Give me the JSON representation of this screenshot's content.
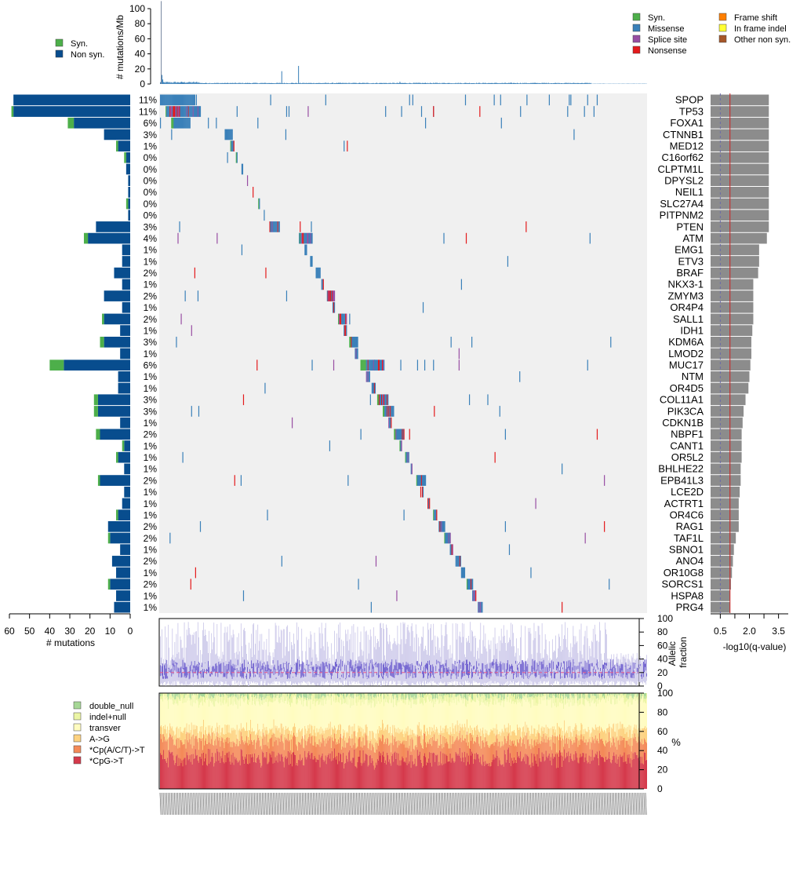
{
  "chart_data": {
    "type": "mutation-landscape",
    "colors": {
      "syn": "#4daf4a",
      "nonsyn": "#084d8e",
      "missense": "#3a80b9",
      "splice_site": "#984ea3",
      "nonsense": "#e41a1c",
      "frame_shift": "#ff7f00",
      "in_frame_indel": "#ffff33",
      "other_non_syn": "#a65628",
      "matrix_bg": "#f0f0f0",
      "q_bar": "#8c8c8c",
      "sig_line": "#cc2222",
      "af_line": "#6a5acd",
      "af_median": "#e85a8a"
    },
    "mutation_rate_panel": {
      "ylabel": "# mutations/Mb",
      "yticks": [
        "0",
        "20",
        "40",
        "60",
        "80",
        "100"
      ],
      "ylim": [
        0,
        110
      ],
      "legend": [
        {
          "label": "Syn.",
          "color": "#4daf4a"
        },
        {
          "label": "Non syn.",
          "color": "#084d8e"
        }
      ],
      "peaks": [
        {
          "sample": 1,
          "value": 110
        },
        {
          "sample": 2,
          "value": 12
        },
        {
          "sample": 3,
          "value": 6
        },
        {
          "sample": 152,
          "value": 17
        },
        {
          "sample": 173,
          "value": 24
        },
        {
          "sample": 300,
          "value": 3
        }
      ]
    },
    "mutation_type_legend": [
      {
        "label": "Syn.",
        "color": "#4daf4a"
      },
      {
        "label": "Missense",
        "color": "#3a80b9"
      },
      {
        "label": "Splice site",
        "color": "#984ea3"
      },
      {
        "label": "Nonsense",
        "color": "#e41a1c"
      },
      {
        "label": "Frame shift",
        "color": "#ff7f00"
      },
      {
        "label": "In frame indel",
        "color": "#ffff33"
      },
      {
        "label": "Other non syn.",
        "color": "#a65628"
      }
    ],
    "gene_count_axis": {
      "xlabel": "# mutations",
      "ticks": [
        "60",
        "50",
        "40",
        "30",
        "20",
        "10",
        "0"
      ],
      "xlim": [
        0,
        60
      ]
    },
    "qvalue_axis": {
      "xlabel": "-log10(q-value)",
      "ticks": [
        "0.5",
        "2.0",
        "3.5"
      ],
      "xlim": [
        0,
        4
      ]
    },
    "genes": [
      {
        "name": "SPOP",
        "pct": "11%",
        "nonsyn": 58,
        "syn": 0,
        "q": 3.0
      },
      {
        "name": "TP53",
        "pct": "11%",
        "nonsyn": 58,
        "syn": 1,
        "q": 3.0
      },
      {
        "name": "FOXA1",
        "pct": "6%",
        "nonsyn": 28,
        "syn": 3,
        "q": 3.0
      },
      {
        "name": "CTNNB1",
        "pct": "3%",
        "nonsyn": 13,
        "syn": 0,
        "q": 3.0
      },
      {
        "name": "MED12",
        "pct": "1%",
        "nonsyn": 6,
        "syn": 1,
        "q": 3.0
      },
      {
        "name": "C16orf62",
        "pct": "0%",
        "nonsyn": 2,
        "syn": 1,
        "q": 3.0
      },
      {
        "name": "CLPTM1L",
        "pct": "0%",
        "nonsyn": 2,
        "syn": 0,
        "q": 3.0
      },
      {
        "name": "DPYSL2",
        "pct": "0%",
        "nonsyn": 1,
        "syn": 0,
        "q": 3.0
      },
      {
        "name": "NEIL1",
        "pct": "0%",
        "nonsyn": 1,
        "syn": 0,
        "q": 3.0
      },
      {
        "name": "SLC27A4",
        "pct": "0%",
        "nonsyn": 1,
        "syn": 1,
        "q": 3.0
      },
      {
        "name": "PITPNM2",
        "pct": "0%",
        "nonsyn": 1,
        "syn": 0,
        "q": 3.0
      },
      {
        "name": "PTEN",
        "pct": "3%",
        "nonsyn": 17,
        "syn": 0,
        "q": 3.0
      },
      {
        "name": "ATM",
        "pct": "4%",
        "nonsyn": 21,
        "syn": 2,
        "q": 2.9
      },
      {
        "name": "EMG1",
        "pct": "1%",
        "nonsyn": 4,
        "syn": 0,
        "q": 2.5
      },
      {
        "name": "ETV3",
        "pct": "1%",
        "nonsyn": 4,
        "syn": 0,
        "q": 2.5
      },
      {
        "name": "BRAF",
        "pct": "2%",
        "nonsyn": 8,
        "syn": 0,
        "q": 2.45
      },
      {
        "name": "NKX3-1",
        "pct": "1%",
        "nonsyn": 4,
        "syn": 0,
        "q": 2.2
      },
      {
        "name": "ZMYM3",
        "pct": "2%",
        "nonsyn": 13,
        "syn": 0,
        "q": 2.2
      },
      {
        "name": "OR4P4",
        "pct": "1%",
        "nonsyn": 4,
        "syn": 0,
        "q": 2.2
      },
      {
        "name": "SALL1",
        "pct": "2%",
        "nonsyn": 13,
        "syn": 1,
        "q": 2.2
      },
      {
        "name": "IDH1",
        "pct": "1%",
        "nonsyn": 5,
        "syn": 0,
        "q": 2.15
      },
      {
        "name": "KDM6A",
        "pct": "3%",
        "nonsyn": 13,
        "syn": 2,
        "q": 2.1
      },
      {
        "name": "LMOD2",
        "pct": "1%",
        "nonsyn": 5,
        "syn": 0,
        "q": 2.1
      },
      {
        "name": "MUC17",
        "pct": "6%",
        "nonsyn": 33,
        "syn": 7,
        "q": 2.05
      },
      {
        "name": "NTM",
        "pct": "1%",
        "nonsyn": 6,
        "syn": 0,
        "q": 2.0
      },
      {
        "name": "OR4D5",
        "pct": "1%",
        "nonsyn": 6,
        "syn": 0,
        "q": 1.95
      },
      {
        "name": "COL11A1",
        "pct": "3%",
        "nonsyn": 16,
        "syn": 2,
        "q": 1.8
      },
      {
        "name": "PIK3CA",
        "pct": "3%",
        "nonsyn": 16,
        "syn": 2,
        "q": 1.7
      },
      {
        "name": "CDKN1B",
        "pct": "1%",
        "nonsyn": 5,
        "syn": 0,
        "q": 1.65
      },
      {
        "name": "NBPF1",
        "pct": "2%",
        "nonsyn": 15,
        "syn": 2,
        "q": 1.6
      },
      {
        "name": "CANT1",
        "pct": "1%",
        "nonsyn": 3,
        "syn": 1,
        "q": 1.6
      },
      {
        "name": "OR5L2",
        "pct": "1%",
        "nonsyn": 6,
        "syn": 1,
        "q": 1.6
      },
      {
        "name": "BHLHE22",
        "pct": "1%",
        "nonsyn": 3,
        "syn": 0,
        "q": 1.55
      },
      {
        "name": "EPB41L3",
        "pct": "2%",
        "nonsyn": 15,
        "syn": 1,
        "q": 1.55
      },
      {
        "name": "LCE2D",
        "pct": "1%",
        "nonsyn": 3,
        "syn": 0,
        "q": 1.5
      },
      {
        "name": "ACTRT1",
        "pct": "1%",
        "nonsyn": 4,
        "syn": 0,
        "q": 1.45
      },
      {
        "name": "OR4C6",
        "pct": "1%",
        "nonsyn": 6,
        "syn": 1,
        "q": 1.45
      },
      {
        "name": "RAG1",
        "pct": "2%",
        "nonsyn": 11,
        "syn": 0,
        "q": 1.45
      },
      {
        "name": "TAF1L",
        "pct": "2%",
        "nonsyn": 10,
        "syn": 1,
        "q": 1.3
      },
      {
        "name": "SBNO1",
        "pct": "1%",
        "nonsyn": 5,
        "syn": 0,
        "q": 1.2
      },
      {
        "name": "ANO4",
        "pct": "2%",
        "nonsyn": 9,
        "syn": 0,
        "q": 1.15
      },
      {
        "name": "OR10G8",
        "pct": "1%",
        "nonsyn": 7,
        "syn": 0,
        "q": 1.1
      },
      {
        "name": "SORCS1",
        "pct": "2%",
        "nonsyn": 10,
        "syn": 1,
        "q": 1.05
      },
      {
        "name": "HSPA8",
        "pct": "1%",
        "nonsyn": 7,
        "syn": 0,
        "q": 1.0
      },
      {
        "name": "PRG4",
        "pct": "1%",
        "nonsyn": 8,
        "syn": 0,
        "q": 1.0
      }
    ],
    "allelic_fraction_panel": {
      "ylabel": "Allelic fraction",
      "yticks": [
        "0",
        "20",
        "40",
        "60",
        "80",
        "100"
      ],
      "ylim": [
        0,
        100
      ],
      "median": 20
    },
    "mutation_spectrum_panel": {
      "ylabel": "%",
      "yticks": [
        "0",
        "20",
        "40",
        "60",
        "80",
        "100"
      ],
      "ylim": [
        0,
        100
      ],
      "categories": [
        {
          "label": "double_null",
          "color": "#a6d796"
        },
        {
          "label": "indel+null",
          "color": "#ebf5a5"
        },
        {
          "label": "transver",
          "color": "#fffcc0"
        },
        {
          "label": "A->G",
          "color": "#fdd280"
        },
        {
          "label": "*Cp(A/C/T)->T",
          "color": "#f48a58"
        },
        {
          "label": "*CpG->T",
          "color": "#d5394b"
        }
      ],
      "typical_composition": [
        2,
        6,
        30,
        12,
        18,
        32
      ]
    }
  }
}
